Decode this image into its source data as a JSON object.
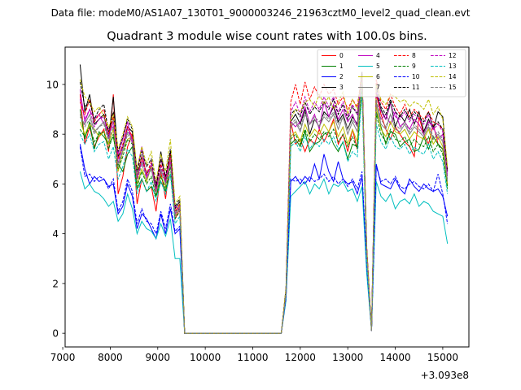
{
  "figure": {
    "suptitle": "Data file: modeM0/AS1A07_130T01_9000003246_21963cztM0_level2_quad_clean.evt"
  },
  "chart_data": {
    "type": "line",
    "title": "Quadrant 3 module wise count rates with 100.0s bins.",
    "xlabel": "",
    "ylabel": "",
    "x_offset_label": "+3.093e8",
    "xlim": [
      7050,
      15550
    ],
    "ylim": [
      -0.55,
      11.5
    ],
    "xticks": [
      7000,
      8000,
      9000,
      10000,
      11000,
      12000,
      13000,
      14000,
      15000
    ],
    "xtick_labels": [
      "7000",
      "8000",
      "9000",
      "10000",
      "11000",
      "12000",
      "13000",
      "14000",
      "15000"
    ],
    "yticks": [
      0,
      2,
      4,
      6,
      8,
      10
    ],
    "ytick_labels": [
      "0",
      "2",
      "4",
      "6",
      "8",
      "10"
    ],
    "legend_position": "top-right",
    "segments": [
      {
        "x_start": 7365,
        "x_step": 100,
        "count": 24
      },
      {
        "x_start": 11600,
        "x_step": 100,
        "count": 36
      }
    ],
    "series": [
      {
        "name": "0",
        "color": "#ff0000",
        "dash": "solid",
        "values": [
          9.6,
          7.6,
          8.3,
          7.5,
          7.9,
          8.2,
          7.3,
          9.6,
          5.6,
          6.3,
          7.5,
          8.0,
          5.2,
          6.2,
          5.7,
          5.9,
          4.9,
          6.5,
          5.4,
          7.0,
          4.6,
          5.0,
          0.0,
          0.0,
          0.0,
          1.5,
          8.5,
          7.6,
          7.8,
          7.3,
          7.8,
          7.6,
          8.2,
          7.7,
          8.1,
          8.6,
          7.6,
          8.0,
          7.3,
          8.2,
          7.4,
          10.3,
          3.3,
          0.1,
          9.6,
          8.8,
          8.2,
          7.8,
          8.3,
          8.0,
          7.7,
          7.5,
          7.1,
          8.7,
          8.0,
          7.6,
          8.4,
          7.6,
          7.4,
          6.0
        ]
      },
      {
        "name": "1",
        "color": "#008000",
        "dash": "solid",
        "values": [
          9.0,
          7.8,
          8.5,
          7.4,
          8.1,
          7.9,
          7.6,
          7.9,
          6.8,
          6.5,
          7.2,
          7.5,
          5.8,
          6.2,
          5.7,
          5.9,
          5.5,
          6.1,
          5.7,
          6.4,
          4.9,
          5.0,
          0.0,
          0.0,
          0.0,
          1.7,
          7.6,
          7.8,
          7.5,
          8.1,
          7.3,
          7.6,
          7.7,
          8.0,
          8.1,
          7.6,
          7.3,
          7.7,
          7.0,
          7.6,
          7.5,
          10.2,
          3.1,
          0.1,
          8.9,
          8.3,
          7.6,
          8.1,
          8.0,
          7.5,
          7.7,
          7.8,
          7.3,
          7.4,
          7.9,
          7.4,
          7.9,
          7.6,
          7.4,
          5.9
        ]
      },
      {
        "name": "2",
        "color": "#0000ff",
        "dash": "solid",
        "values": [
          7.6,
          6.6,
          6.0,
          6.3,
          6.1,
          6.2,
          5.9,
          6.0,
          4.8,
          5.1,
          6.0,
          5.5,
          4.2,
          4.8,
          4.6,
          4.2,
          3.8,
          4.8,
          4.0,
          5.0,
          4.0,
          4.2,
          0.0,
          0.0,
          0.0,
          1.4,
          6.1,
          6.3,
          6.0,
          6.3,
          6.1,
          6.8,
          6.2,
          7.2,
          6.5,
          6.1,
          6.9,
          6.2,
          6.0,
          6.1,
          5.6,
          6.3,
          2.6,
          0.1,
          6.8,
          6.0,
          5.9,
          5.8,
          6.2,
          5.8,
          5.6,
          6.2,
          5.9,
          5.7,
          6.0,
          5.8,
          5.7,
          5.8,
          5.5,
          4.7
        ]
      },
      {
        "name": "3",
        "color": "#000000",
        "dash": "solid",
        "values": [
          10.8,
          8.9,
          9.6,
          8.4,
          8.6,
          8.8,
          7.8,
          9.5,
          7.1,
          7.5,
          8.3,
          8.1,
          6.3,
          7.1,
          6.4,
          6.7,
          5.8,
          7.3,
          6.1,
          7.3,
          5.0,
          5.3,
          0.0,
          0.0,
          0.0,
          1.7,
          8.5,
          8.8,
          8.4,
          9.0,
          8.0,
          8.6,
          8.3,
          8.9,
          8.7,
          9.1,
          8.5,
          8.8,
          8.2,
          8.7,
          8.4,
          10.4,
          3.4,
          0.1,
          9.7,
          9.0,
          8.6,
          9.3,
          8.3,
          8.8,
          8.5,
          9.0,
          8.4,
          8.9,
          8.1,
          8.6,
          8.2,
          8.9,
          8.7,
          6.5
        ]
      },
      {
        "name": "4",
        "color": "#bf00bf",
        "dash": "solid",
        "values": [
          9.8,
          8.5,
          9.0,
          8.6,
          8.8,
          8.4,
          8.2,
          8.3,
          7.2,
          7.8,
          8.5,
          7.6,
          6.6,
          7.5,
          6.2,
          6.7,
          6.0,
          7.0,
          6.3,
          7.0,
          5.1,
          5.0,
          0.0,
          0.0,
          0.0,
          1.6,
          8.5,
          8.3,
          8.5,
          9.1,
          8.4,
          8.8,
          8.2,
          9.3,
          8.7,
          9.2,
          8.6,
          9.0,
          8.5,
          8.8,
          8.3,
          10.3,
          3.2,
          0.1,
          9.2,
          8.6,
          8.8,
          8.4,
          8.9,
          8.3,
          8.5,
          8.2,
          8.6,
          8.4,
          8.0,
          8.5,
          8.3,
          7.8,
          8.0,
          6.3
        ]
      },
      {
        "name": "5",
        "color": "#00bfbf",
        "dash": "solid",
        "values": [
          6.5,
          5.8,
          6.0,
          5.7,
          5.6,
          5.4,
          5.1,
          5.3,
          4.5,
          4.8,
          5.6,
          5.0,
          4.0,
          4.5,
          4.2,
          4.1,
          3.8,
          4.4,
          3.9,
          4.6,
          3.0,
          3.0,
          0.0,
          0.0,
          0.0,
          1.3,
          5.5,
          5.7,
          5.9,
          6.1,
          5.6,
          6.0,
          5.8,
          6.2,
          5.6,
          6.0,
          5.9,
          6.1,
          5.7,
          5.8,
          5.3,
          5.9,
          2.4,
          0.1,
          6.1,
          5.5,
          5.3,
          5.6,
          5.0,
          5.3,
          5.4,
          5.2,
          5.6,
          5.1,
          5.3,
          5.2,
          4.9,
          4.8,
          4.7,
          3.6
        ]
      },
      {
        "name": "6",
        "color": "#bfbf00",
        "dash": "solid",
        "values": [
          8.5,
          8.0,
          8.4,
          8.2,
          7.9,
          8.1,
          7.6,
          8.2,
          6.5,
          7.3,
          7.8,
          7.9,
          6.0,
          6.6,
          6.1,
          6.7,
          5.6,
          6.3,
          5.9,
          7.0,
          4.7,
          5.2,
          0.0,
          0.0,
          0.0,
          1.5,
          7.9,
          8.1,
          7.7,
          8.4,
          7.9,
          8.2,
          8.0,
          8.4,
          8.1,
          8.5,
          7.9,
          8.3,
          7.6,
          8.2,
          7.7,
          10.1,
          3.0,
          0.1,
          9.1,
          8.2,
          7.9,
          8.5,
          8.1,
          8.0,
          8.2,
          7.8,
          8.1,
          7.9,
          7.8,
          8.2,
          7.6,
          7.9,
          7.5,
          6.0
        ]
      },
      {
        "name": "7",
        "color": "#808080",
        "dash": "solid",
        "values": [
          8.7,
          8.4,
          8.8,
          8.1,
          8.3,
          8.5,
          7.8,
          8.6,
          6.8,
          7.4,
          8.1,
          7.8,
          6.3,
          6.9,
          6.5,
          6.6,
          5.7,
          6.6,
          6.0,
          6.9,
          4.8,
          5.1,
          0.0,
          0.0,
          0.0,
          1.6,
          8.3,
          8.5,
          8.1,
          8.8,
          8.4,
          8.6,
          8.3,
          8.7,
          8.5,
          8.8,
          8.2,
          8.7,
          8.0,
          8.5,
          8.1,
          10.2,
          3.1,
          0.1,
          9.3,
          8.4,
          8.2,
          8.8,
          8.2,
          8.1,
          8.4,
          8.0,
          8.3,
          8.1,
          7.9,
          8.3,
          7.8,
          8.0,
          7.7,
          6.1
        ]
      },
      {
        "name": "8",
        "color": "#ff0000",
        "dash": "dashed",
        "values": [
          9.3,
          8.8,
          9.4,
          8.5,
          8.8,
          9.0,
          8.0,
          8.7,
          7.0,
          7.6,
          8.3,
          7.9,
          6.2,
          7.1,
          6.4,
          6.9,
          5.8,
          6.8,
          6.2,
          7.2,
          4.9,
          5.2,
          0.0,
          0.0,
          0.0,
          1.7,
          9.3,
          10.0,
          9.2,
          10.1,
          9.4,
          9.9,
          9.5,
          10.0,
          9.6,
          9.8,
          9.2,
          9.5,
          9.0,
          9.4,
          9.1,
          10.5,
          3.5,
          0.1,
          10.2,
          9.3,
          9.0,
          9.6,
          9.1,
          8.8,
          9.2,
          8.7,
          9.0,
          8.8,
          8.6,
          8.9,
          8.5,
          8.4,
          8.2,
          6.6
        ]
      },
      {
        "name": "9",
        "color": "#008000",
        "dash": "dashed",
        "values": [
          8.2,
          7.9,
          8.3,
          7.7,
          8.0,
          8.1,
          7.4,
          8.0,
          6.6,
          7.1,
          7.8,
          7.6,
          5.9,
          6.5,
          6.0,
          6.3,
          5.5,
          6.3,
          5.8,
          6.7,
          4.6,
          4.9,
          0.0,
          0.0,
          0.0,
          1.5,
          7.8,
          8.0,
          7.6,
          8.2,
          7.7,
          8.0,
          7.8,
          8.1,
          7.9,
          8.2,
          7.7,
          8.0,
          7.5,
          7.9,
          7.4,
          9.9,
          3.0,
          0.1,
          8.8,
          8.0,
          7.7,
          8.2,
          7.8,
          7.7,
          7.9,
          7.5,
          7.8,
          7.6,
          7.5,
          7.9,
          7.3,
          7.6,
          7.2,
          5.8
        ]
      },
      {
        "name": "10",
        "color": "#0000ff",
        "dash": "dashed",
        "values": [
          7.5,
          6.3,
          6.4,
          6.1,
          6.3,
          6.2,
          5.8,
          6.2,
          4.9,
          5.3,
          6.2,
          5.7,
          4.4,
          5.0,
          4.5,
          4.4,
          4.0,
          4.9,
          4.2,
          5.2,
          4.1,
          4.3,
          0.0,
          0.0,
          0.0,
          1.4,
          6.2,
          6.1,
          6.2,
          6.0,
          6.3,
          6.1,
          6.2,
          6.4,
          6.1,
          6.3,
          6.0,
          6.2,
          5.9,
          6.2,
          5.8,
          6.5,
          2.7,
          0.1,
          6.7,
          6.1,
          6.2,
          6.0,
          6.3,
          5.9,
          5.8,
          6.0,
          6.1,
          5.9,
          5.8,
          6.0,
          5.7,
          6.4,
          5.6,
          4.4
        ]
      },
      {
        "name": "11",
        "color": "#000000",
        "dash": "dashed",
        "values": [
          10.1,
          9.1,
          9.3,
          8.6,
          9.0,
          9.2,
          8.1,
          8.9,
          7.3,
          7.9,
          8.6,
          8.2,
          6.5,
          7.3,
          6.7,
          7.0,
          5.9,
          7.0,
          6.3,
          7.4,
          5.1,
          5.4,
          0.0,
          0.0,
          0.0,
          1.8,
          8.8,
          9.0,
          8.7,
          9.3,
          8.8,
          9.1,
          8.9,
          9.3,
          9.0,
          9.4,
          8.8,
          9.2,
          8.6,
          9.1,
          8.8,
          10.5,
          3.4,
          0.1,
          9.9,
          9.1,
          8.8,
          9.4,
          8.9,
          8.7,
          9.0,
          8.6,
          8.9,
          8.7,
          8.5,
          8.9,
          8.3,
          8.5,
          8.2,
          6.5
        ]
      },
      {
        "name": "12",
        "color": "#bf00bf",
        "dash": "dashed",
        "values": [
          9.4,
          8.6,
          9.0,
          8.3,
          8.6,
          8.7,
          7.9,
          8.5,
          6.9,
          7.5,
          8.2,
          7.8,
          6.2,
          6.9,
          6.3,
          6.8,
          5.7,
          6.7,
          6.1,
          7.0,
          4.8,
          5.1,
          0.0,
          0.0,
          0.0,
          1.6,
          8.9,
          9.3,
          8.8,
          9.5,
          8.9,
          9.3,
          9.0,
          9.5,
          9.1,
          9.5,
          8.9,
          9.3,
          8.7,
          9.2,
          8.8,
          10.3,
          3.3,
          0.1,
          9.8,
          8.9,
          8.6,
          9.2,
          8.7,
          8.6,
          8.9,
          8.5,
          8.8,
          8.6,
          8.4,
          8.8,
          8.2,
          8.4,
          8.1,
          6.4
        ]
      },
      {
        "name": "13",
        "color": "#00bfbf",
        "dash": "dashed",
        "values": [
          8.0,
          7.6,
          8.0,
          7.3,
          7.6,
          7.7,
          7.0,
          7.5,
          6.2,
          6.7,
          7.4,
          7.1,
          5.6,
          6.2,
          5.7,
          6.1,
          5.3,
          6.1,
          5.6,
          6.4,
          4.4,
          4.7,
          0.0,
          0.0,
          0.0,
          1.5,
          7.5,
          7.7,
          7.3,
          7.9,
          7.4,
          7.7,
          7.5,
          7.8,
          7.6,
          7.9,
          7.4,
          7.7,
          6.9,
          7.3,
          7.1,
          9.6,
          2.9,
          0.1,
          8.4,
          7.7,
          7.4,
          7.9,
          7.5,
          7.4,
          7.6,
          7.2,
          7.5,
          7.3,
          7.2,
          7.6,
          7.0,
          7.3,
          6.9,
          5.6
        ]
      },
      {
        "name": "14",
        "color": "#bfbf00",
        "dash": "dashed",
        "values": [
          10.2,
          9.5,
          9.3,
          8.9,
          9.1,
          8.7,
          8.3,
          8.8,
          7.4,
          8.0,
          8.7,
          8.3,
          6.6,
          7.5,
          6.8,
          7.3,
          6.1,
          7.2,
          6.5,
          7.8,
          5.2,
          5.5,
          0.0,
          0.0,
          0.0,
          1.8,
          8.6,
          9.0,
          8.9,
          9.3,
          9.4,
          9.1,
          9.6,
          9.2,
          9.5,
          9.0,
          9.3,
          9.7,
          8.8,
          9.4,
          9.0,
          10.3,
          3.4,
          0.1,
          10.0,
          9.4,
          9.2,
          9.6,
          9.5,
          9.3,
          9.4,
          9.1,
          9.3,
          9.2,
          9.0,
          9.4,
          8.8,
          9.1,
          8.6,
          6.7
        ]
      },
      {
        "name": "15",
        "color": "#808080",
        "dash": "dashed",
        "values": [
          8.8,
          8.3,
          8.6,
          8.0,
          8.3,
          8.4,
          7.7,
          8.3,
          6.7,
          7.3,
          8.0,
          7.7,
          6.1,
          6.8,
          6.2,
          6.6,
          5.6,
          6.5,
          6.0,
          6.8,
          4.7,
          5.0,
          0.0,
          0.0,
          0.0,
          1.6,
          8.4,
          8.6,
          8.2,
          8.9,
          8.4,
          8.7,
          8.5,
          8.8,
          8.6,
          8.9,
          8.4,
          8.7,
          8.2,
          8.6,
          8.3,
          10.1,
          3.2,
          0.1,
          9.4,
          8.6,
          8.3,
          8.8,
          8.4,
          8.2,
          8.5,
          8.1,
          8.4,
          8.2,
          8.0,
          8.4,
          7.9,
          8.1,
          7.8,
          6.2
        ]
      }
    ]
  }
}
